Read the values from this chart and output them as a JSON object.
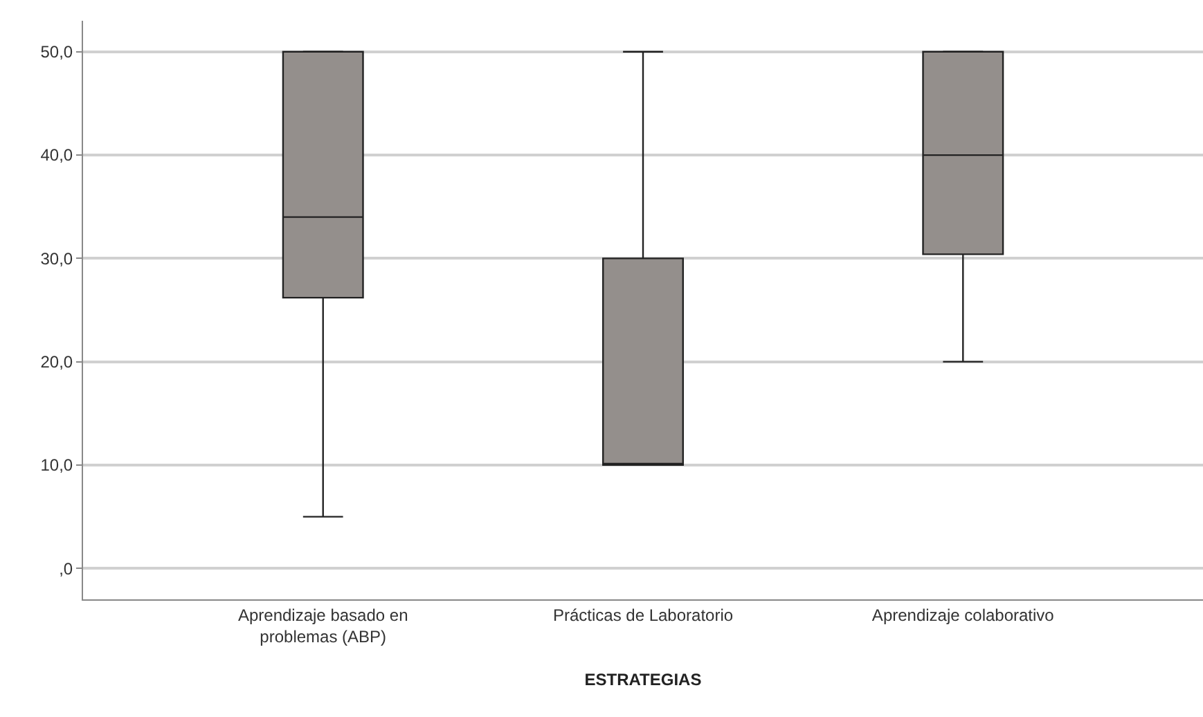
{
  "chart_data": {
    "type": "box",
    "xlabel": "ESTRATEGIAS",
    "categories": [
      "Aprendizaje basado en\nproblemas (ABP)",
      "Prácticas de Laboratorio",
      "Aprendizaje colaborativo"
    ],
    "boxes": [
      {
        "low": 5,
        "q1": 26.2,
        "median": 34,
        "q3": 50,
        "high": 50
      },
      {
        "low": 10,
        "q1": 10,
        "median": 10,
        "q3": 30,
        "high": 50
      },
      {
        "low": 20,
        "q1": 30.4,
        "median": 40,
        "q3": 50,
        "high": 50
      }
    ],
    "color": "#948f8c",
    "ylim": [
      -3,
      53
    ],
    "yticks": [
      {
        "value": 0,
        "label": ",0"
      },
      {
        "value": 10,
        "label": "10,0"
      },
      {
        "value": 20,
        "label": "20,0"
      },
      {
        "value": 30,
        "label": "30,0"
      },
      {
        "value": 40,
        "label": "40,0"
      },
      {
        "value": 50,
        "label": "50,0"
      }
    ],
    "grid": "y"
  }
}
